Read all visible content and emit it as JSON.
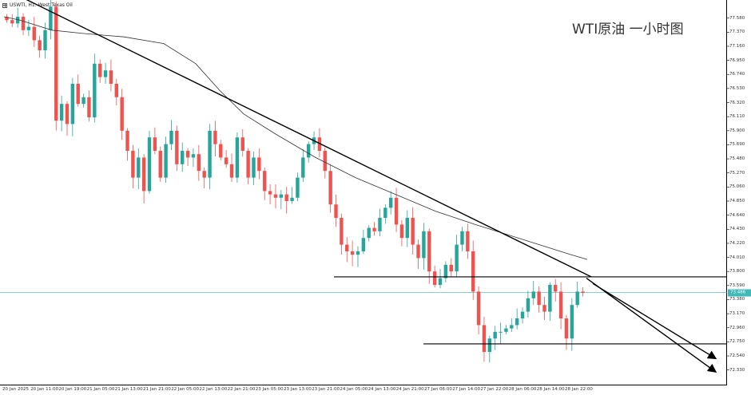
{
  "header": {
    "symbol_label": "USWTI, H1: West Texas Oil"
  },
  "caption": "WTI原油 一小时图",
  "price_label": "73.486",
  "colors": {
    "up": "#26a69a",
    "down": "#ef5350",
    "ma": "#333333",
    "trend": "#000000",
    "price_line": "#3fb8b8"
  },
  "icons": {
    "header": "grid-icon"
  },
  "chart_data": {
    "type": "candlestick",
    "symbol": "USWTI",
    "timeframe": "H1",
    "ylim": [
      72.1,
      77.85
    ],
    "y_ticks": [
      "77.580",
      "77.370",
      "77.160",
      "76.950",
      "76.740",
      "76.530",
      "76.320",
      "76.110",
      "75.900",
      "75.690",
      "75.480",
      "75.270",
      "75.060",
      "74.850",
      "74.640",
      "74.430",
      "74.220",
      "74.010",
      "73.800",
      "73.590",
      "73.380",
      "73.170",
      "72.960",
      "72.750",
      "72.540",
      "72.330"
    ],
    "x_ticks": [
      "20 Jan 2025",
      "20 Jan 11:00",
      "20 Jan 19:00",
      "21 Jan 05:00",
      "21 Jan 13:00",
      "21 Jan 21:00",
      "22 Jan 05:00",
      "22 Jan 13:00",
      "22 Jan 21:00",
      "23 Jan 05:00",
      "23 Jan 13:00",
      "23 Jan 21:00",
      "24 Jan 05:00",
      "24 Jan 13:00",
      "24 Jan 21:00",
      "27 Jan 06:00",
      "27 Jan 14:00",
      "27 Jan 22:00",
      "28 Jan 06:00",
      "28 Jan 14:00",
      "28 Jan 22:00"
    ],
    "current_price": 73.486,
    "close_path": [
      77.55,
      77.5,
      77.6,
      77.4,
      77.45,
      77.25,
      77.1,
      77.4,
      77.75,
      76.05,
      76.3,
      76.0,
      76.6,
      76.3,
      76.4,
      76.1,
      76.9,
      76.7,
      76.8,
      76.6,
      76.4,
      75.9,
      75.6,
      75.2,
      75.5,
      75.0,
      75.8,
      75.6,
      75.2,
      75.7,
      75.9,
      75.4,
      75.6,
      75.5,
      75.55,
      75.3,
      75.2,
      75.9,
      75.7,
      75.5,
      75.4,
      75.2,
      75.8,
      75.6,
      75.2,
      75.5,
      75.3,
      75.0,
      74.95,
      74.9,
      74.95,
      74.85,
      74.9,
      75.2,
      75.5,
      75.7,
      75.8,
      75.6,
      75.3,
      74.8,
      74.6,
      74.2,
      74.1,
      74.05,
      74.1,
      74.3,
      74.45,
      74.4,
      74.6,
      74.75,
      74.9,
      74.5,
      74.3,
      74.6,
      74.2,
      74.0,
      74.4,
      73.8,
      73.6,
      73.7,
      73.9,
      73.8,
      74.2,
      74.4,
      74.1,
      73.5,
      73.0,
      72.6,
      72.8,
      72.9,
      72.9,
      72.95,
      73.0,
      73.1,
      73.2,
      73.4,
      73.5,
      73.3,
      73.2,
      73.6,
      73.5,
      73.1,
      72.8,
      73.3,
      73.5,
      73.48
    ],
    "moving_average": [
      [
        77.6,
        0
      ],
      [
        77.55,
        20
      ],
      [
        77.4,
        60
      ],
      [
        77.35,
        100
      ],
      [
        77.3,
        150
      ],
      [
        77.2,
        200
      ],
      [
        76.9,
        240
      ],
      [
        76.5,
        270
      ],
      [
        76.15,
        300
      ],
      [
        75.85,
        340
      ],
      [
        75.5,
        390
      ],
      [
        75.2,
        440
      ],
      [
        74.95,
        490
      ],
      [
        74.7,
        540
      ],
      [
        74.5,
        590
      ],
      [
        74.35,
        630
      ],
      [
        74.2,
        670
      ],
      [
        74.05,
        710
      ],
      [
        73.98,
        730
      ]
    ],
    "trendlines": [
      {
        "name": "descending",
        "x1": 0,
        "y1": 78.05,
        "x2": 740,
        "y2": 73.72
      },
      {
        "name": "ray-short",
        "x1": 742,
        "y1": 73.62,
        "x2": 896,
        "y2": 72.5
      },
      {
        "name": "ray-long",
        "x1": 734,
        "y1": 73.7,
        "x2": 896,
        "y2": 72.3
      }
    ],
    "horizontal_levels": [
      {
        "value": 73.72,
        "x_start": 418
      },
      {
        "value": 72.72,
        "x_start": 530
      }
    ]
  }
}
